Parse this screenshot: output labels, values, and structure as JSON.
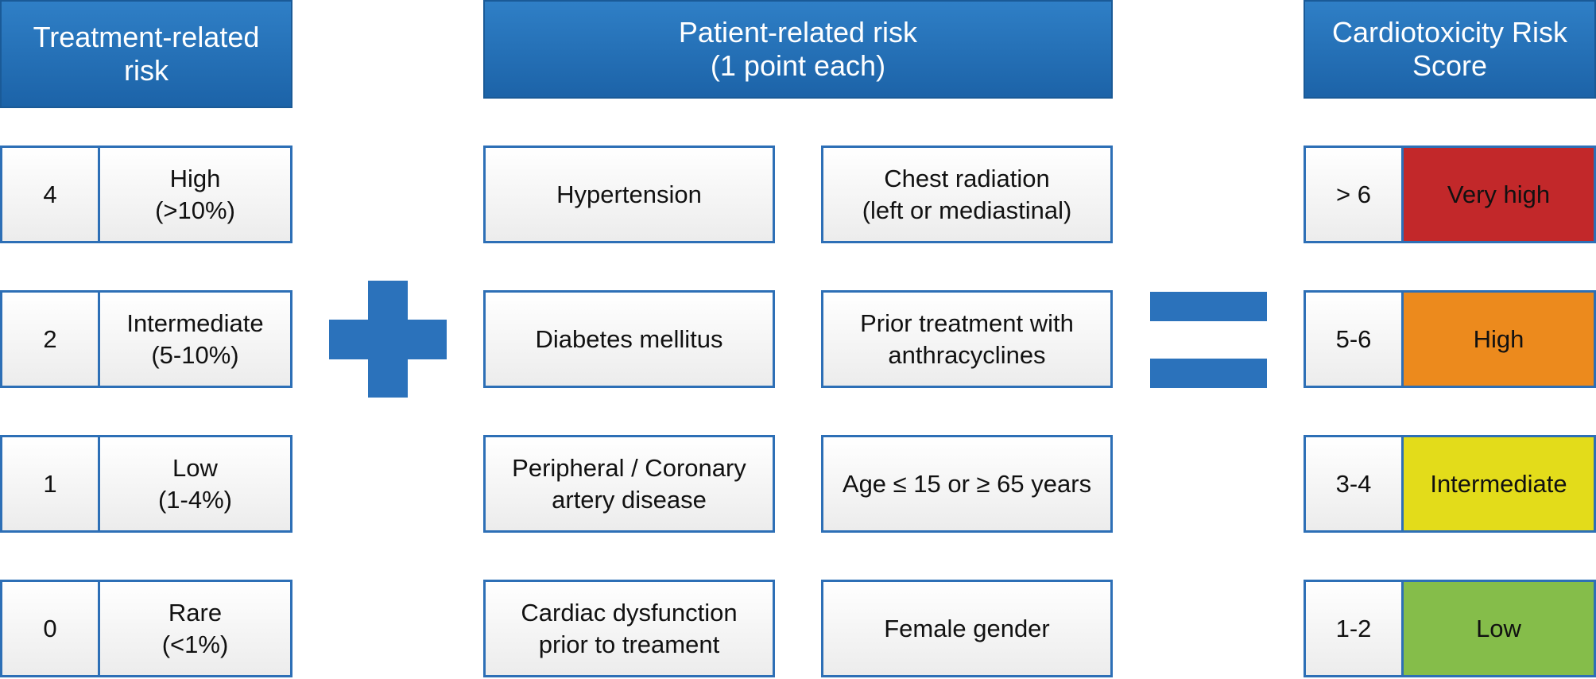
{
  "headers": {
    "treatment": "Treatment-related\nrisk",
    "patient": "Patient-related risk\n(1 point each)",
    "score": "Cardiotoxicity Risk\nScore"
  },
  "treatment_rows": [
    {
      "points": "4",
      "label": "High\n(>10%)"
    },
    {
      "points": "2",
      "label": "Intermediate\n(5-10%)"
    },
    {
      "points": "1",
      "label": "Low\n(1-4%)"
    },
    {
      "points": "0",
      "label": "Rare\n(<1%)"
    }
  ],
  "patient_factors_left": [
    "Hypertension",
    "Diabetes mellitus",
    "Peripheral / Coronary\nartery disease",
    "Cardiac dysfunction\nprior to treament"
  ],
  "patient_factors_right": [
    "Chest radiation\n(left or mediastinal)",
    "Prior treatment with\nanthracyclines",
    "Age ≤ 15 or ≥ 65 years",
    "Female gender"
  ],
  "score_rows": [
    {
      "range": "> 6",
      "category": "Very high",
      "color": "#c2282a"
    },
    {
      "range": "5-6",
      "category": "High",
      "color": "#ec8a1d"
    },
    {
      "range": "3-4",
      "category": "Intermediate",
      "color": "#e3dc1a"
    },
    {
      "range": "1-2",
      "category": "Low",
      "color": "#85bd4a"
    }
  ],
  "colors": {
    "header_blue": "#1c63a8",
    "border_blue": "#2d6fb6",
    "symbol_blue": "#2b72bb"
  }
}
